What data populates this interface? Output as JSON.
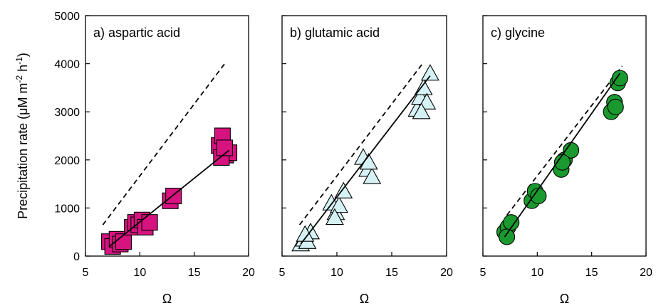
{
  "figure": {
    "ylabel": "Precipitation rate (μM m<sup>-2</sup> h<sup>-1</sup>)",
    "ylabel_parts": {
      "main": "Precipitation rate (μM m",
      "sup1": "-2",
      "mid": " h",
      "sup2": "-1",
      "end": ")"
    }
  },
  "chart_data": [
    {
      "type": "scatter",
      "title": "a) aspartic acid",
      "xlabel": "Ω",
      "ylabel": "Precipitation rate (μM m-2 h-1)",
      "xlim": [
        5,
        20
      ],
      "ylim": [
        0,
        5000
      ],
      "xticks": [
        5,
        10,
        15,
        20
      ],
      "yticks": [
        0,
        1000,
        2000,
        3000,
        4000,
        5000
      ],
      "marker": "square",
      "color": "#d6137f",
      "points": {
        "x": [
          7.2,
          7.5,
          7.9,
          8.2,
          8.5,
          9.3,
          9.6,
          9.9,
          10.2,
          10.5,
          10.9,
          12.8,
          13.1,
          17.3,
          17.6,
          17.9,
          18.2,
          17.5,
          17.8
        ],
        "y": [
          300,
          200,
          350,
          250,
          300,
          600,
          700,
          650,
          750,
          600,
          700,
          1150,
          1250,
          2300,
          2500,
          2100,
          2150,
          2050,
          2250
        ]
      },
      "fit_line": {
        "x": [
          7.2,
          18.2
        ],
        "y": [
          200,
          2200
        ]
      },
      "reference_line": {
        "x": [
          6.6,
          17.8
        ],
        "y": [
          650,
          4000
        ]
      }
    },
    {
      "type": "scatter",
      "title": "b) glutamic acid",
      "xlabel": "Ω",
      "xlim": [
        5,
        20
      ],
      "ylim": [
        0,
        5000
      ],
      "xticks": [
        5,
        10,
        15,
        20
      ],
      "marker": "triangle",
      "color": "#d6f2f4",
      "points": {
        "x": [
          6.7,
          7.0,
          7.3,
          7.6,
          7.1,
          9.5,
          9.9,
          10.2,
          10.6,
          9.8,
          12.4,
          12.8,
          13.2,
          12.9,
          17.3,
          17.6,
          17.9,
          18.2,
          18.5,
          17.7
        ],
        "y": [
          250,
          350,
          300,
          500,
          450,
          1100,
          900,
          1050,
          1350,
          800,
          2050,
          1800,
          1650,
          1950,
          3050,
          3300,
          3500,
          3200,
          3800,
          3000
        ],
        "show_axis": false
      },
      "fit_line": {
        "x": [
          6.7,
          18.5
        ],
        "y": [
          250,
          3750
        ]
      },
      "reference_line": {
        "x": [
          6.6,
          17.8
        ],
        "y": [
          650,
          4000
        ]
      }
    },
    {
      "type": "scatter",
      "title": "c) glycine",
      "xlabel": "Ω",
      "xlim": [
        5,
        20
      ],
      "ylim": [
        0,
        5000
      ],
      "xticks": [
        5,
        10,
        15,
        20
      ],
      "marker": "circle",
      "color": "#1a9a2e",
      "points": {
        "x": [
          7.0,
          7.3,
          7.6,
          7.2,
          9.5,
          9.8,
          10.1,
          12.2,
          12.5,
          13.1,
          12.3,
          16.8,
          17.1,
          17.4,
          17.6,
          17.2
        ],
        "y": [
          500,
          600,
          700,
          400,
          1150,
          1350,
          1250,
          1800,
          2000,
          2200,
          1950,
          3000,
          3200,
          3600,
          3700,
          3100
        ]
      },
      "fit_line": {
        "x": [
          7.0,
          17.6
        ],
        "y": [
          400,
          3800
        ]
      },
      "reference_line": {
        "x": [
          7.2,
          17.8
        ],
        "y": [
          850,
          3950
        ]
      }
    }
  ]
}
